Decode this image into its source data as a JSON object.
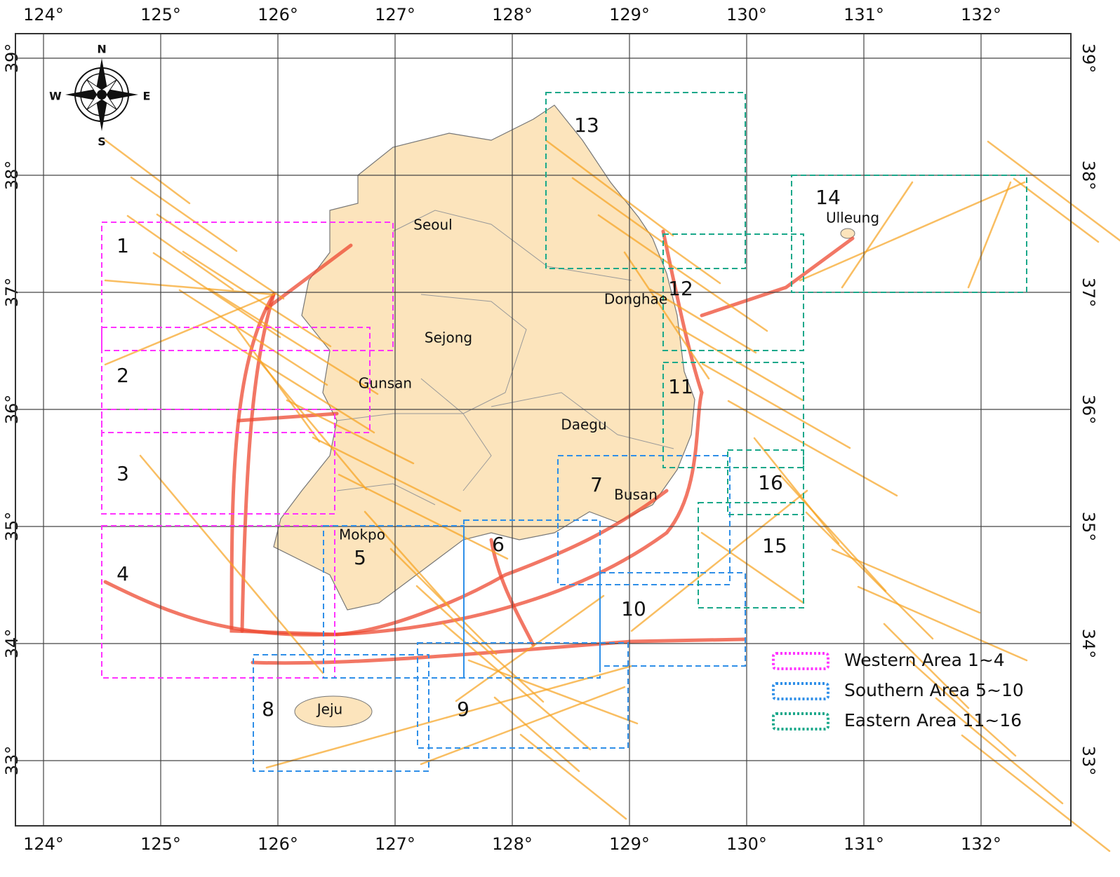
{
  "axes": {
    "longitude": [
      "124°",
      "125°",
      "126°",
      "127°",
      "128°",
      "129°",
      "130°",
      "131°",
      "132°"
    ],
    "latitude": [
      "39°",
      "38°",
      "37°",
      "36°",
      "35°",
      "34°",
      "33°"
    ]
  },
  "compass": {
    "north": "N",
    "south": "S",
    "east": "E",
    "west": "W"
  },
  "areas": [
    1,
    2,
    3,
    4,
    5,
    6,
    7,
    8,
    9,
    10,
    11,
    12,
    13,
    14,
    15,
    16
  ],
  "places": [
    "Seoul",
    "Sejong",
    "Gunsan",
    "Daegu",
    "Donghae",
    "Busan",
    "Mokpo",
    "Jeju",
    "Ulleung"
  ],
  "legend": [
    "Western Area 1~4",
    "Southern Area 5~10",
    "Eastern Area 11~16"
  ]
}
